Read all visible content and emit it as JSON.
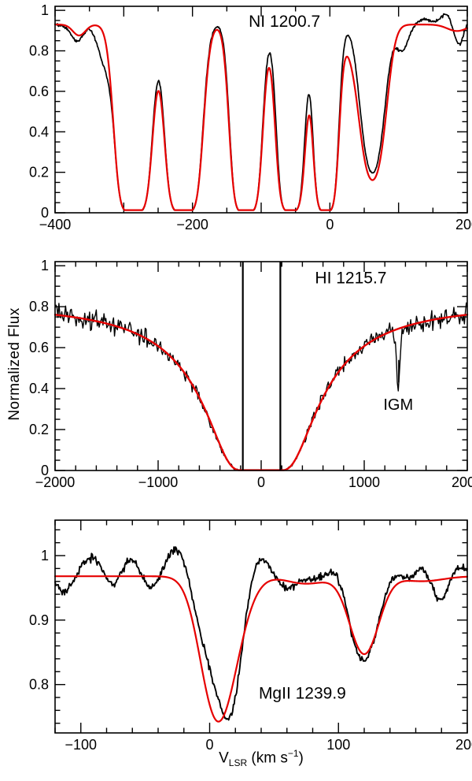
{
  "figure": {
    "background": "#ffffff",
    "ylabel": "Normalized Flux",
    "xlabel": {
      "variable": "V",
      "subscript": "LSR",
      "unit_pre": " (km s",
      "unit_exp": "−1",
      "unit_post": ")"
    },
    "data_color": "#000000",
    "fit_color": "#e60000"
  },
  "chart_data": [
    {
      "type": "line",
      "name": "NI-1200.7",
      "title": "NI 1200.7",
      "title_pos": {
        "x": -66,
        "y": 0.945
      },
      "xlim": [
        -400,
        200
      ],
      "xticks": [
        -400,
        -300,
        -200,
        -100,
        0,
        100,
        200
      ],
      "xtick_labels": [
        "−400",
        "",
        "−200",
        "",
        "0",
        "",
        "200"
      ],
      "xminor": 50,
      "ylim": [
        0,
        1.02
      ],
      "yticks": [
        0,
        0.2,
        0.4,
        0.6,
        0.8,
        1
      ],
      "ytick_labels": [
        "0",
        "0.2",
        "0.4",
        "0.6",
        "0.8",
        "1"
      ],
      "yminor": 0.05,
      "annotations": [],
      "series": [
        {
          "name": "observed",
          "color": "#000000",
          "width": 1.7,
          "samples": 700,
          "seed": 7,
          "model": {
            "continuum": 0.93,
            "floor": 0.013,
            "noise": 0.0035,
            "wiggle": {
              "amp": 0.005,
              "period": 41,
              "phase": 1.3
            },
            "components": [
              [
                -368,
                0.1,
                8
              ],
              [
                -327,
                0.22,
                10
              ],
              [
                -286,
                7.0,
                13.5
              ],
              [
                -213,
                7.0,
                13.5
              ],
              [
                -122,
                7.0,
                11.5
              ],
              [
                -57,
                6.0,
                10.5
              ],
              [
                -6,
                6.0,
                9.5
              ],
              [
                62,
                1.55,
                13
              ],
              [
                105,
                0.14,
                9
              ],
              [
                140,
                -0.03,
                9
              ],
              [
                170,
                -0.05,
                9
              ],
              [
                188,
                0.12,
                7
              ],
              [
                200,
                -0.03,
                8
              ]
            ]
          }
        },
        {
          "name": "fit",
          "color": "#e60000",
          "width": 2.2,
          "samples": 700,
          "seed": 2,
          "model": {
            "continuum": 0.93,
            "floor": 0.013,
            "components": [
              [
                -365,
                0.06,
                9
              ],
              [
                -286,
                6.5,
                14
              ],
              [
                -213,
                6.5,
                14
              ],
              [
                -122,
                6.5,
                12
              ],
              [
                -57,
                5.5,
                11.5
              ],
              [
                -6,
                5.5,
                10
              ],
              [
                30,
                0.1,
                10
              ],
              [
                62,
                1.75,
                14
              ],
              [
                185,
                0.035,
                14
              ]
            ]
          }
        }
      ]
    },
    {
      "type": "line",
      "name": "HI-1215.7",
      "title": "HI 1215.7",
      "title_pos": {
        "x": 870,
        "y": 0.94
      },
      "xlim": [
        -2000,
        2000
      ],
      "xticks": [
        -2000,
        -1000,
        0,
        1000,
        2000
      ],
      "xtick_labels": [
        "−2000",
        "−1000",
        "0",
        "1000",
        "2000"
      ],
      "xminor": 200,
      "ylim": [
        0,
        1.02
      ],
      "yticks": [
        0,
        0.2,
        0.4,
        0.6,
        0.8,
        1
      ],
      "ytick_labels": [
        "0",
        "0.2",
        "0.4",
        "0.6",
        "0.8",
        "1"
      ],
      "yminor": 0.05,
      "annotations": [
        {
          "type": "text",
          "text": "IGM",
          "x": 1330,
          "y": 0.32,
          "size": 20
        },
        {
          "type": "vline",
          "x": 1335,
          "y1": 0.43,
          "y2": 0.54
        },
        {
          "type": "spike",
          "x": -178,
          "y1": 0,
          "y2": 1.02
        },
        {
          "type": "spike",
          "x": 186,
          "y1": 0,
          "y2": 1.02
        }
      ],
      "series": [
        {
          "name": "observed",
          "color": "#000000",
          "width": 1.4,
          "samples": 430,
          "seed": 11,
          "model": {
            "continuum": 0.82,
            "floor": 0.001,
            "damped": {
              "strength": 300000
            },
            "noise": 0.024,
            "wiggle": {
              "amp": 0.008,
              "period": 640,
              "phase": 2.0
            },
            "components": [
              [
                1330,
                0.55,
                16
              ]
            ]
          }
        },
        {
          "name": "fit",
          "color": "#e60000",
          "width": 2.4,
          "samples": 900,
          "seed": 3,
          "model": {
            "continuum": 0.82,
            "floor": 0.001,
            "damped": {
              "strength": 300000
            },
            "components": []
          }
        }
      ]
    },
    {
      "type": "line",
      "name": "MgII-1239.9",
      "title": "MgII 1239.9",
      "title_pos": {
        "x": 72,
        "y": 0.786
      },
      "xlim": [
        -120,
        200
      ],
      "xticks": [
        -100,
        0,
        100,
        200
      ],
      "xtick_labels": [
        "−100",
        "0",
        "100",
        "200"
      ],
      "xminor": 20,
      "ylim": [
        0.725,
        1.055
      ],
      "yticks": [
        0.8,
        0.9,
        1
      ],
      "ytick_labels": [
        "0.8",
        "0.9",
        "1"
      ],
      "yminor": 0.02,
      "annotations": [],
      "series": [
        {
          "name": "observed",
          "color": "#000000",
          "width": 1.9,
          "samples": 520,
          "seed": 23,
          "model": {
            "continuum": 0.97,
            "noise": 0.0028,
            "wiggle": {
              "amp": 0.0045,
              "period": 24,
              "phase": 0.5
            },
            "components": [
              [
                -113,
                0.032,
                6
              ],
              [
                -100,
                -0.012,
                7
              ],
              [
                -88,
                -0.02,
                7
              ],
              [
                -72,
                0.025,
                7
              ],
              [
                -60,
                -0.038,
                8
              ],
              [
                -45,
                0.038,
                8
              ],
              [
                -28,
                -0.05,
                9
              ],
              [
                8,
                0.19,
                13
              ],
              [
                18,
                0.1,
                8
              ],
              [
                38,
                -0.045,
                9
              ],
              [
                55,
                0.025,
                8
              ],
              [
                80,
                0.012,
                8
              ],
              [
                92,
                -0.012,
                8
              ],
              [
                120,
                0.15,
                10
              ],
              [
                140,
                -0.01,
                7
              ],
              [
                152,
                0.012,
                6
              ],
              [
                165,
                -0.02,
                7
              ],
              [
                178,
                0.045,
                7
              ],
              [
                190,
                -0.015,
                6
              ]
            ]
          }
        },
        {
          "name": "fit",
          "color": "#e60000",
          "width": 2.2,
          "samples": 640,
          "seed": 5,
          "model": {
            "continuum": 0.968,
            "components": [
              [
                5,
                0.235,
                12
              ],
              [
                20,
                0.06,
                12
              ],
              [
                75,
                0.012,
                15
              ],
              [
                120,
                0.133,
                11
              ],
              [
                165,
                0.008,
                16
              ]
            ]
          }
        }
      ]
    }
  ]
}
